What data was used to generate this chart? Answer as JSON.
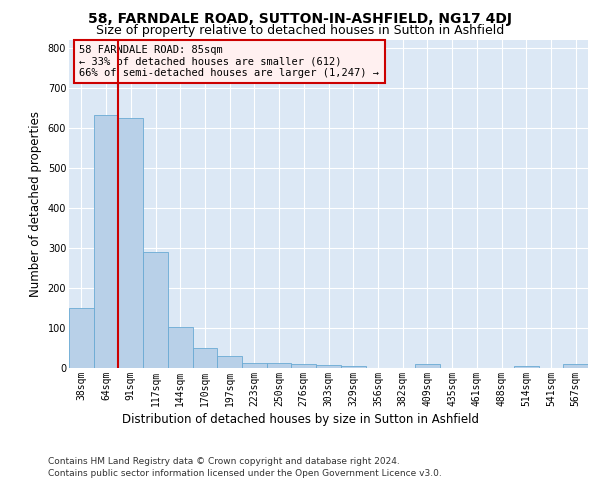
{
  "title": "58, FARNDALE ROAD, SUTTON-IN-ASHFIELD, NG17 4DJ",
  "subtitle": "Size of property relative to detached houses in Sutton in Ashfield",
  "xlabel": "Distribution of detached houses by size in Sutton in Ashfield",
  "ylabel": "Number of detached properties",
  "categories": [
    "38sqm",
    "64sqm",
    "91sqm",
    "117sqm",
    "144sqm",
    "170sqm",
    "197sqm",
    "223sqm",
    "250sqm",
    "276sqm",
    "303sqm",
    "329sqm",
    "356sqm",
    "382sqm",
    "409sqm",
    "435sqm",
    "461sqm",
    "488sqm",
    "514sqm",
    "541sqm",
    "567sqm"
  ],
  "values": [
    148,
    632,
    625,
    288,
    101,
    48,
    30,
    12,
    12,
    8,
    7,
    5,
    0,
    0,
    8,
    0,
    0,
    0,
    5,
    0,
    8
  ],
  "bar_color": "#b8d0e8",
  "bar_edge_color": "#6aaad4",
  "vline_x": 1.5,
  "vline_color": "#cc0000",
  "annotation_text": "58 FARNDALE ROAD: 85sqm\n← 33% of detached houses are smaller (612)\n66% of semi-detached houses are larger (1,247) →",
  "annotation_box_facecolor": "#fff0f0",
  "annotation_box_edge": "#cc0000",
  "ylim": [
    0,
    820
  ],
  "yticks": [
    0,
    100,
    200,
    300,
    400,
    500,
    600,
    700,
    800
  ],
  "plot_bg_color": "#dce8f5",
  "footer1": "Contains HM Land Registry data © Crown copyright and database right 2024.",
  "footer2": "Contains public sector information licensed under the Open Government Licence v3.0.",
  "title_fontsize": 10,
  "subtitle_fontsize": 9,
  "tick_fontsize": 7,
  "ylabel_fontsize": 8.5,
  "xlabel_fontsize": 8.5,
  "footer_fontsize": 6.5,
  "annotation_fontsize": 7.5
}
